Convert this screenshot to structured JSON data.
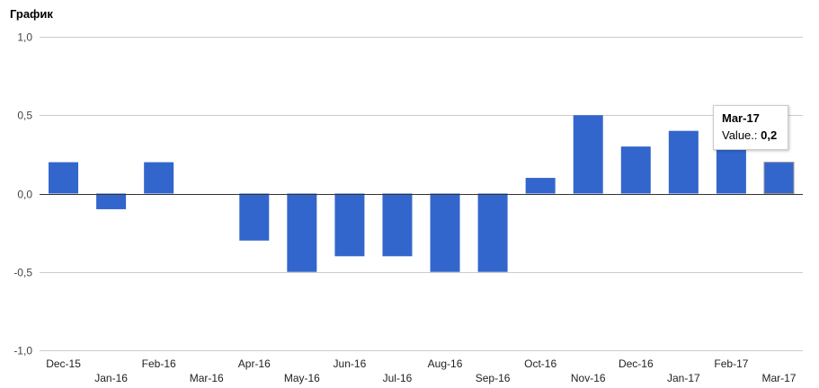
{
  "title": "График",
  "chart_data": {
    "type": "bar",
    "categories": [
      "Dec-15",
      "Jan-16",
      "Feb-16",
      "Mar-16",
      "Apr-16",
      "May-16",
      "Jun-16",
      "Jul-16",
      "Aug-16",
      "Sep-16",
      "Oct-16",
      "Nov-16",
      "Dec-16",
      "Jan-17",
      "Feb-17",
      "Mar-17"
    ],
    "values": [
      0.2,
      -0.1,
      0.2,
      0.0,
      -0.3,
      -0.5,
      -0.4,
      -0.4,
      -0.5,
      -0.5,
      0.1,
      0.5,
      0.3,
      0.4,
      0.3,
      0.2
    ],
    "yticks": [
      "1,0",
      "0,5",
      "0,0",
      "-0,5",
      "-1,0"
    ],
    "ylim": [
      -1.0,
      1.0
    ],
    "grid": true,
    "bar_color": "#3366cc",
    "highlight_index": 15,
    "highlight_color": "#3366cc"
  },
  "tooltip": {
    "title": "Mar-17",
    "value_label": "Value.: ",
    "value": "0,2"
  }
}
